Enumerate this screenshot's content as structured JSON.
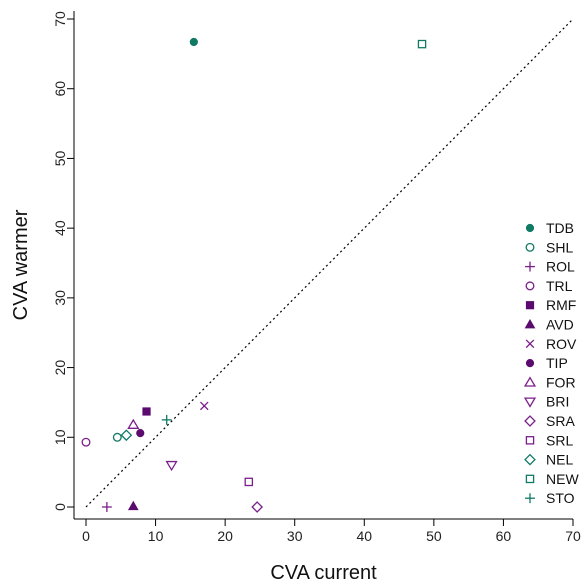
{
  "chart_data": {
    "type": "scatter",
    "xlabel": "CVA current",
    "ylabel": "CVA warmer",
    "xlim": [
      0,
      70
    ],
    "ylim": [
      0,
      70
    ],
    "x_ticks": [
      0,
      10,
      20,
      30,
      40,
      50,
      60,
      70
    ],
    "y_ticks": [
      0,
      10,
      20,
      30,
      40,
      50,
      60,
      70
    ],
    "reference_line": "y = x (dotted)",
    "legend_position": "right",
    "colors": {
      "teal": "#117a65",
      "purple": "#7b1f8a",
      "dark_purple": "#5b0a6e"
    },
    "series": [
      {
        "name": "TDB",
        "marker": "circle-filled",
        "color": "#117a65",
        "x": 15.5,
        "y": 66.7
      },
      {
        "name": "SHL",
        "marker": "circle-open",
        "color": "#117a65",
        "x": 4.5,
        "y": 10.0
      },
      {
        "name": "ROL",
        "marker": "plus",
        "color": "#7b1f8a",
        "x": 3.0,
        "y": 0.0
      },
      {
        "name": "TRL",
        "marker": "circle-open",
        "color": "#7b1f8a",
        "x": 0.0,
        "y": 9.3
      },
      {
        "name": "RMF",
        "marker": "square-filled",
        "color": "#5b0a6e",
        "x": 8.7,
        "y": 13.7
      },
      {
        "name": "AVD",
        "marker": "triangle-filled",
        "color": "#5b0a6e",
        "x": 6.8,
        "y": 0.1
      },
      {
        "name": "ROV",
        "marker": "cross",
        "color": "#7b1f8a",
        "x": 17.0,
        "y": 14.5
      },
      {
        "name": "TIP",
        "marker": "circle-filled",
        "color": "#5b0a6e",
        "x": 7.8,
        "y": 10.6
      },
      {
        "name": "FOR",
        "marker": "triangle-open",
        "color": "#7b1f8a",
        "x": 6.8,
        "y": 11.8
      },
      {
        "name": "BRI",
        "marker": "triangle-down-open",
        "color": "#7b1f8a",
        "x": 12.3,
        "y": 6.0
      },
      {
        "name": "SRA",
        "marker": "diamond-open",
        "color": "#7b1f8a",
        "x": 24.6,
        "y": 0.0
      },
      {
        "name": "SRL",
        "marker": "square-open",
        "color": "#7b1f8a",
        "x": 23.4,
        "y": 3.6
      },
      {
        "name": "NEL",
        "marker": "diamond-open",
        "color": "#117a65",
        "x": 5.8,
        "y": 10.3
      },
      {
        "name": "NEW",
        "marker": "square-open",
        "color": "#117a65",
        "x": 48.3,
        "y": 66.4
      },
      {
        "name": "STO",
        "marker": "plus",
        "color": "#117a65",
        "x": 11.6,
        "y": 12.5
      }
    ]
  }
}
